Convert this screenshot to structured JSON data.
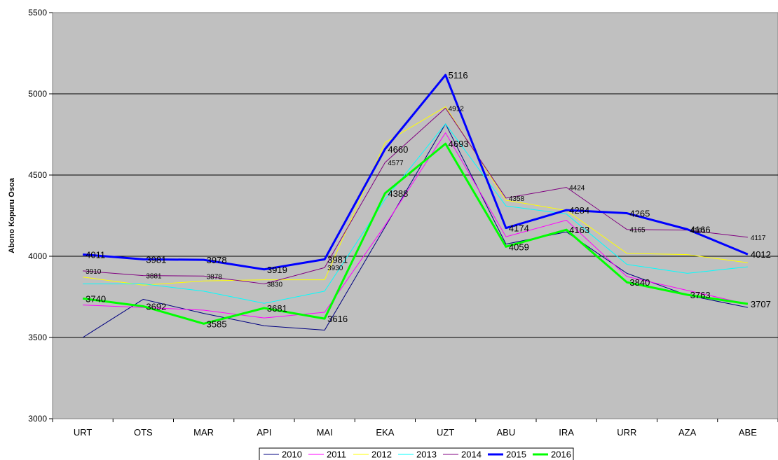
{
  "chart_data": {
    "type": "line",
    "title": "",
    "xlabel": "",
    "ylabel": "Abono Kopuru Osoa",
    "ylim": [
      3000,
      5500
    ],
    "yticks": [
      3000,
      3500,
      4000,
      4500,
      5000,
      5500
    ],
    "grid": "horizontal",
    "legend_position": "bottom",
    "background_color": "#c0c0c0",
    "categories": [
      "URT",
      "OTS",
      "MAR",
      "API",
      "MAI",
      "EKA",
      "UZT",
      "ABU",
      "IRA",
      "URR",
      "AZA",
      "ABE"
    ],
    "series": [
      {
        "name": "2010",
        "color": "#000080",
        "width": 1,
        "values": [
          3500,
          3735,
          3648,
          3572,
          3545,
          4180,
          4815,
          4075,
          4150,
          3895,
          3760,
          3685
        ],
        "labels": [
          null,
          null,
          null,
          null,
          null,
          null,
          null,
          null,
          null,
          null,
          null,
          null
        ],
        "label_size": "none"
      },
      {
        "name": "2011",
        "color": "#ff00ff",
        "width": 1,
        "values": [
          3700,
          3685,
          3668,
          3620,
          3655,
          4190,
          4760,
          4120,
          4222,
          3875,
          3790,
          3705
        ],
        "labels": [
          null,
          null,
          null,
          null,
          null,
          null,
          null,
          null,
          null,
          null,
          null,
          null
        ],
        "label_size": "none"
      },
      {
        "name": "2012",
        "color": "#ffff00",
        "width": 1,
        "values": [
          3872,
          3822,
          3848,
          3855,
          3855,
          4700,
          4920,
          4345,
          4282,
          4018,
          4010,
          3960
        ],
        "labels": [
          null,
          null,
          null,
          null,
          null,
          null,
          null,
          null,
          null,
          null,
          null,
          null
        ],
        "label_size": "none"
      },
      {
        "name": "2013",
        "color": "#00ffff",
        "width": 1,
        "values": [
          3830,
          3830,
          3785,
          3710,
          3785,
          4350,
          4815,
          4310,
          4260,
          3950,
          3895,
          3935
        ],
        "labels": [
          null,
          null,
          null,
          null,
          null,
          null,
          null,
          null,
          null,
          null,
          null,
          null
        ],
        "label_size": "none"
      },
      {
        "name": "2014",
        "color": "#800080",
        "width": 1,
        "values": [
          3910,
          3881,
          3878,
          3830,
          3930,
          4577,
          4912,
          4358,
          4424,
          4165,
          4161,
          4117
        ],
        "labels": [
          "3910",
          "3881",
          "3878",
          "3830",
          "3930",
          "4577",
          "4912",
          "4358",
          "4424",
          "4165",
          "4161",
          "4117"
        ],
        "label_size": "small"
      },
      {
        "name": "2015",
        "color": "#0000ff",
        "width": 3,
        "values": [
          4011,
          3981,
          3978,
          3919,
          3981,
          4660,
          5116,
          4174,
          4284,
          4265,
          4166,
          4012
        ],
        "labels": [
          "4011",
          "3981",
          "3978",
          "3919",
          "3981",
          "4660",
          "5116",
          "4174",
          "4284",
          "4265",
          "4166",
          "4012"
        ],
        "label_size": "large"
      },
      {
        "name": "2016",
        "color": "#00ff00",
        "width": 3,
        "values": [
          3740,
          3692,
          3585,
          3681,
          3616,
          4388,
          4693,
          4059,
          4163,
          3840,
          3763,
          3707
        ],
        "labels": [
          "3740",
          "3692",
          "3585",
          "3681",
          "3616",
          "4388",
          "4693",
          "4059",
          "4163",
          "3840",
          "3763",
          "3707"
        ],
        "label_size": "large"
      }
    ]
  }
}
